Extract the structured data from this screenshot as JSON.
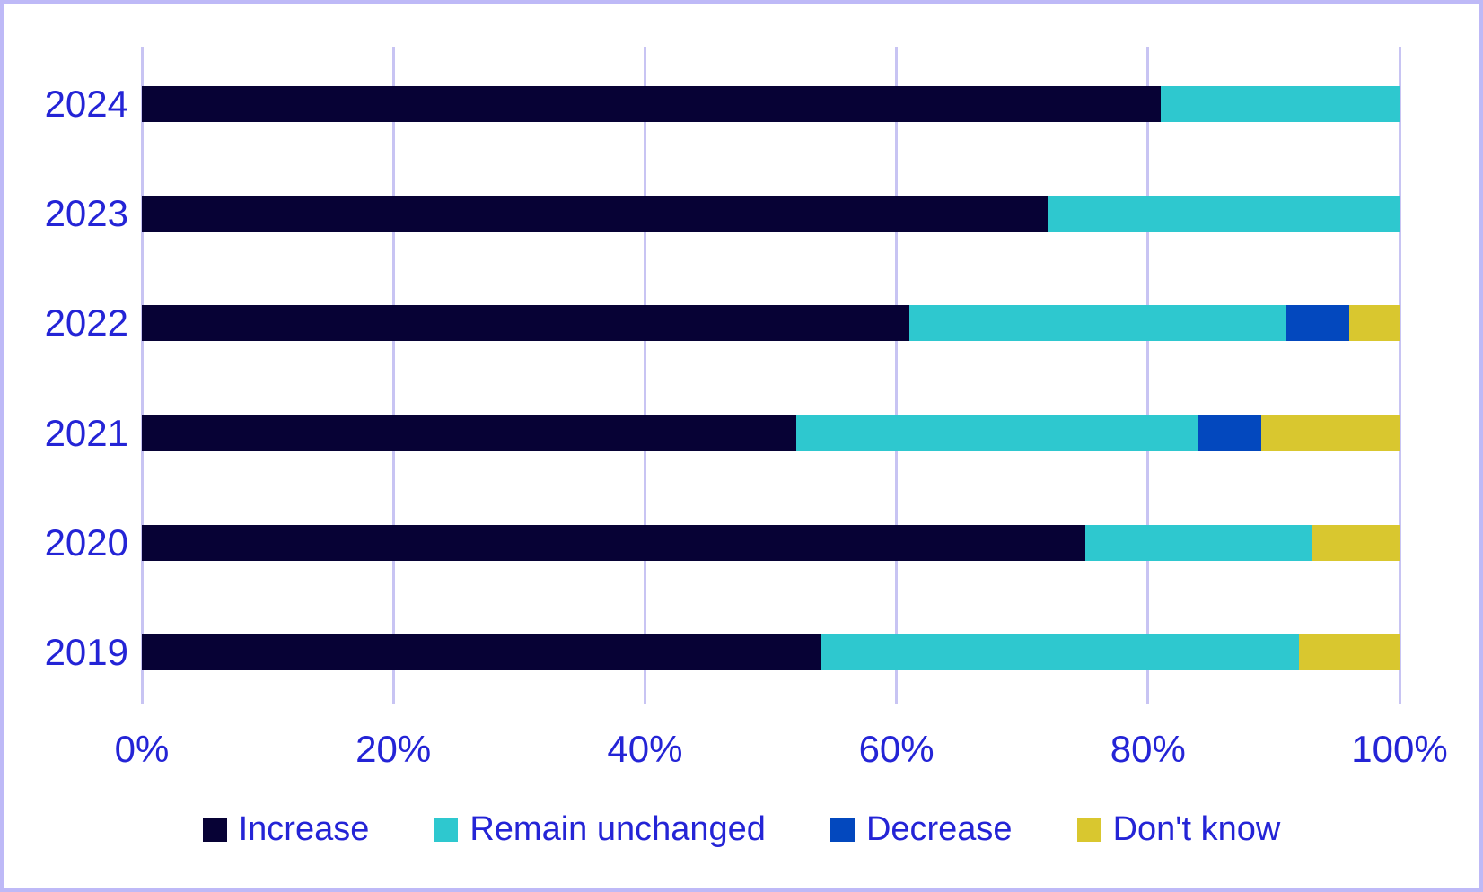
{
  "chart_data": {
    "type": "bar",
    "orientation": "horizontal-stacked",
    "title": "",
    "xlabel": "",
    "ylabel": "",
    "categories": [
      "2024",
      "2023",
      "2022",
      "2021",
      "2020",
      "2019"
    ],
    "series": [
      {
        "name": "Increase",
        "color": "#070235",
        "values": [
          81,
          72,
          61,
          52,
          75,
          54
        ]
      },
      {
        "name": "Remain unchanged",
        "color": "#2ec8cf",
        "values": [
          19,
          28,
          30,
          32,
          18,
          38
        ]
      },
      {
        "name": "Decrease",
        "color": "#0348be",
        "values": [
          0,
          0,
          5,
          5,
          0,
          0
        ]
      },
      {
        "name": "Don't know",
        "color": "#d9c72f",
        "values": [
          0,
          0,
          4,
          11,
          7,
          8
        ]
      }
    ],
    "x_ticks": [
      "0%",
      "20%",
      "40%",
      "60%",
      "80%",
      "100%"
    ],
    "x_tick_values": [
      0,
      20,
      40,
      60,
      80,
      100
    ],
    "xlim": [
      0,
      100
    ],
    "grid": "vertical",
    "legend_position": "bottom",
    "colors": {
      "axis_text": "#2424d6",
      "gridline": "#c8c4f3",
      "frame_border": "#beb9f7",
      "background": "#ffffff"
    }
  }
}
